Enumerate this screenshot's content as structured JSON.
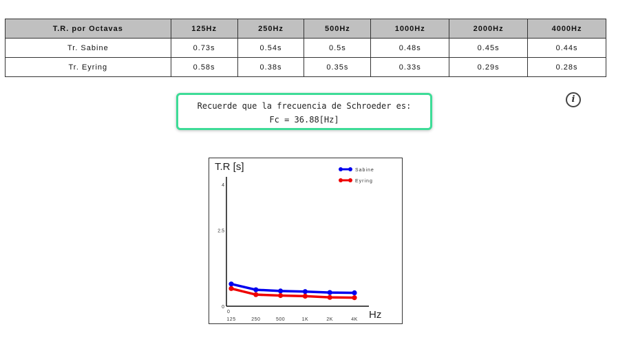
{
  "table": {
    "headers": [
      "T.R. por Octavas",
      "125Hz",
      "250Hz",
      "500Hz",
      "1000Hz",
      "2000Hz",
      "4000Hz"
    ],
    "rows": [
      {
        "label": "Tr. Sabine",
        "values": [
          "0.73s",
          "0.54s",
          "0.5s",
          "0.48s",
          "0.45s",
          "0.44s"
        ]
      },
      {
        "label": "Tr. Eyring",
        "values": [
          "0.58s",
          "0.38s",
          "0.35s",
          "0.33s",
          "0.29s",
          "0.28s"
        ]
      }
    ]
  },
  "schroeder": {
    "line1": "Recuerde que la frecuencia de Schroeder es:",
    "line2": "Fc = 36.88[Hz]"
  },
  "info_icon": {
    "glyph": "i",
    "icon": "info-icon"
  },
  "chart_data": {
    "type": "line",
    "ylabel": "T.R [s]",
    "xlabel": "Hz",
    "categories": [
      "125",
      "250",
      "500",
      "1K",
      "2K",
      "4K"
    ],
    "x_origin_label": "0",
    "yticks": [
      "0",
      "2.5",
      "4"
    ],
    "ylim": [
      0,
      4
    ],
    "legend_position": "top-right",
    "series": [
      {
        "name": "Sabine",
        "color": "#0000ee",
        "values": [
          0.73,
          0.54,
          0.5,
          0.48,
          0.45,
          0.44
        ]
      },
      {
        "name": "Eyring",
        "color": "#ee0000",
        "values": [
          0.58,
          0.38,
          0.35,
          0.33,
          0.29,
          0.28
        ]
      }
    ]
  }
}
